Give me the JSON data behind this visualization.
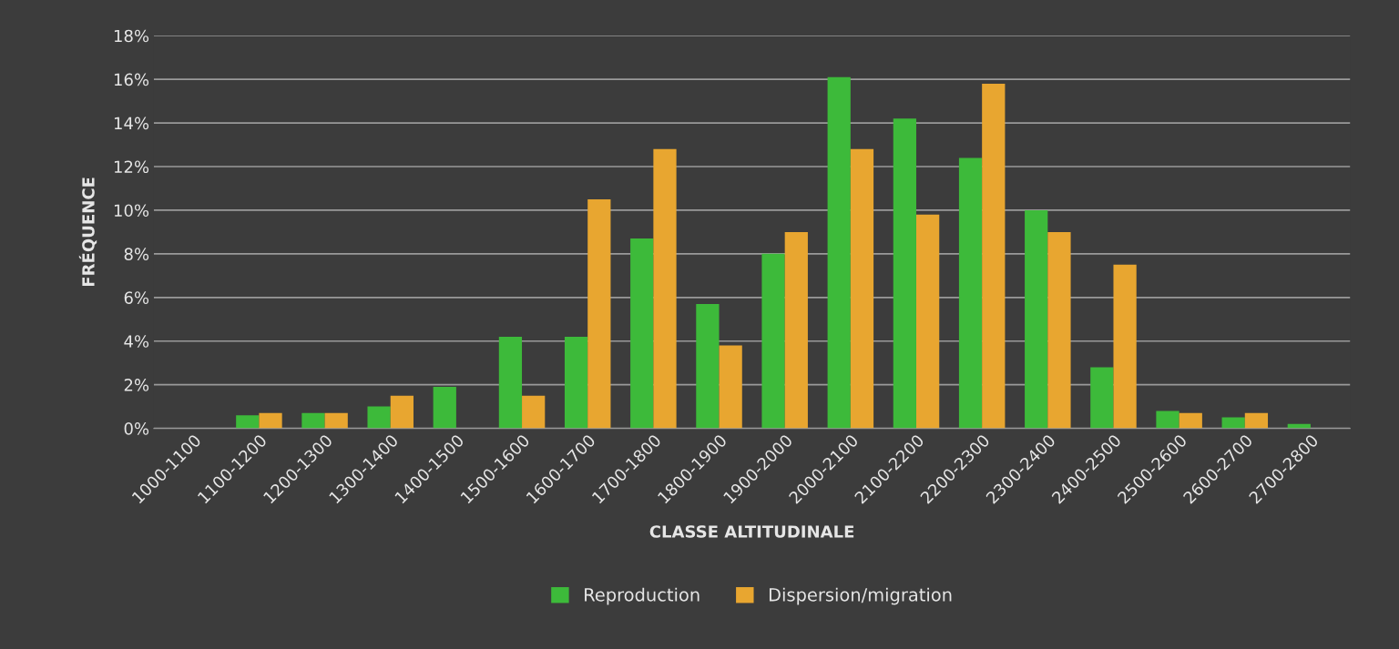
{
  "chart_data": {
    "type": "bar",
    "xlabel": "CLASSE ALTITUDINALE",
    "ylabel": "FRÉQUENCE",
    "categories": [
      "1000-1100",
      "1100-1200",
      "1200-1300",
      "1300-1400",
      "1400-1500",
      "1500-1600",
      "1600-1700",
      "1700-1800",
      "1800-1900",
      "1900-2000",
      "2000-2100",
      "2100-2200",
      "2200-2300",
      "2300-2400",
      "2400-2500",
      "2500-2600",
      "2600-2700",
      "2700-2800"
    ],
    "series": [
      {
        "name": "Reproduction",
        "color": "#3dba3a",
        "values": [
          0,
          0.6,
          0.7,
          1.0,
          1.9,
          4.2,
          4.2,
          8.7,
          5.7,
          8.0,
          16.1,
          14.2,
          12.4,
          10.0,
          2.8,
          0.8,
          0.5,
          0.2
        ]
      },
      {
        "name": "Dispersion/migration",
        "color": "#e8a630",
        "values": [
          0,
          0.7,
          0.7,
          1.5,
          0,
          1.5,
          10.5,
          12.8,
          3.8,
          9.0,
          12.8,
          9.8,
          15.8,
          9.0,
          7.5,
          0.7,
          0.7,
          0
        ]
      }
    ],
    "ylim": [
      0,
      18
    ],
    "yticks": [
      {
        "value": 0,
        "label": "0%"
      },
      {
        "value": 2,
        "label": "2%"
      },
      {
        "value": 4,
        "label": "4%"
      },
      {
        "value": 6,
        "label": "6%"
      },
      {
        "value": 8,
        "label": "8%"
      },
      {
        "value": 10,
        "label": "10%"
      },
      {
        "value": 12,
        "label": "12%"
      },
      {
        "value": 14,
        "label": "14%"
      },
      {
        "value": 16,
        "label": "16%"
      },
      {
        "value": 18,
        "label": "18%"
      }
    ],
    "grid": "y",
    "legend": "bottom"
  }
}
